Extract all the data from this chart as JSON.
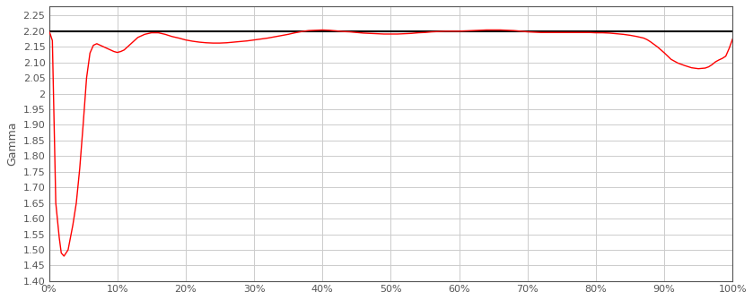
{
  "title": "",
  "ylabel": "Gamma",
  "xlabel": "",
  "background_color": "#ffffff",
  "plot_bg_color": "#ffffff",
  "grid_color": "#cccccc",
  "reference_line_y": 2.2,
  "reference_line_color": "#000000",
  "curve_color": "#ff0000",
  "ylim": [
    1.4,
    2.28
  ],
  "xlim": [
    0.0,
    1.0
  ],
  "yticks": [
    1.4,
    1.45,
    1.5,
    1.55,
    1.6,
    1.65,
    1.7,
    1.75,
    1.8,
    1.85,
    1.9,
    1.95,
    2.0,
    2.05,
    2.1,
    2.15,
    2.2,
    2.25
  ],
  "xtick_positions": [
    0.0,
    0.1,
    0.2,
    0.3,
    0.4,
    0.5,
    0.6,
    0.7,
    0.8,
    0.9,
    1.0
  ],
  "xtick_labels": [
    "0%",
    "10%",
    "20%",
    "30%",
    "40%",
    "50%",
    "60%",
    "70%",
    "80%",
    "90%",
    "100%"
  ],
  "x": [
    0.0,
    0.002,
    0.005,
    0.01,
    0.015,
    0.018,
    0.022,
    0.028,
    0.035,
    0.04,
    0.045,
    0.05,
    0.055,
    0.06,
    0.065,
    0.07,
    0.075,
    0.08,
    0.085,
    0.09,
    0.095,
    0.1,
    0.105,
    0.11,
    0.115,
    0.12,
    0.125,
    0.13,
    0.135,
    0.14,
    0.15,
    0.16,
    0.17,
    0.18,
    0.19,
    0.2,
    0.21,
    0.22,
    0.23,
    0.24,
    0.25,
    0.26,
    0.27,
    0.28,
    0.29,
    0.3,
    0.31,
    0.32,
    0.33,
    0.34,
    0.35,
    0.36,
    0.37,
    0.38,
    0.39,
    0.4,
    0.41,
    0.42,
    0.43,
    0.44,
    0.45,
    0.46,
    0.47,
    0.48,
    0.49,
    0.5,
    0.51,
    0.52,
    0.53,
    0.54,
    0.55,
    0.56,
    0.57,
    0.58,
    0.59,
    0.6,
    0.61,
    0.62,
    0.63,
    0.64,
    0.65,
    0.66,
    0.67,
    0.68,
    0.69,
    0.7,
    0.71,
    0.72,
    0.73,
    0.74,
    0.75,
    0.76,
    0.77,
    0.78,
    0.79,
    0.8,
    0.81,
    0.82,
    0.83,
    0.84,
    0.85,
    0.86,
    0.87,
    0.875,
    0.88,
    0.885,
    0.89,
    0.9,
    0.91,
    0.92,
    0.93,
    0.94,
    0.95,
    0.955,
    0.96,
    0.965,
    0.97,
    0.975,
    0.98,
    0.985,
    0.99,
    0.995,
    1.0
  ],
  "y": [
    2.2,
    2.19,
    2.17,
    1.65,
    1.54,
    1.49,
    1.48,
    1.5,
    1.58,
    1.65,
    1.76,
    1.9,
    2.05,
    2.13,
    2.155,
    2.16,
    2.155,
    2.15,
    2.145,
    2.14,
    2.135,
    2.132,
    2.135,
    2.14,
    2.15,
    2.16,
    2.17,
    2.18,
    2.185,
    2.19,
    2.195,
    2.195,
    2.19,
    2.183,
    2.178,
    2.172,
    2.168,
    2.165,
    2.163,
    2.162,
    2.162,
    2.163,
    2.165,
    2.167,
    2.169,
    2.172,
    2.175,
    2.178,
    2.182,
    2.186,
    2.19,
    2.195,
    2.199,
    2.202,
    2.203,
    2.204,
    2.203,
    2.201,
    2.199,
    2.198,
    2.196,
    2.194,
    2.193,
    2.192,
    2.191,
    2.191,
    2.191,
    2.192,
    2.193,
    2.195,
    2.196,
    2.198,
    2.199,
    2.2,
    2.2,
    2.2,
    2.201,
    2.202,
    2.203,
    2.204,
    2.204,
    2.204,
    2.203,
    2.202,
    2.2,
    2.198,
    2.197,
    2.196,
    2.196,
    2.196,
    2.196,
    2.196,
    2.196,
    2.196,
    2.196,
    2.195,
    2.195,
    2.194,
    2.192,
    2.19,
    2.187,
    2.183,
    2.178,
    2.173,
    2.166,
    2.158,
    2.15,
    2.131,
    2.11,
    2.098,
    2.09,
    2.083,
    2.08,
    2.081,
    2.082,
    2.086,
    2.093,
    2.102,
    2.108,
    2.113,
    2.12,
    2.145,
    2.175
  ]
}
